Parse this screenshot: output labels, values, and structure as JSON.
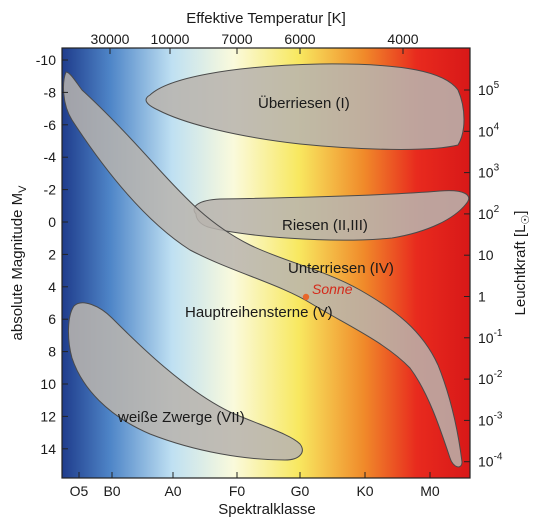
{
  "top_axis": {
    "title": "Effektive Temperatur [K]",
    "ticks": [
      "30000",
      "10000",
      "7000",
      "6000",
      "4000"
    ]
  },
  "bottom_axis": {
    "title": "Spektralklasse",
    "ticks": [
      "O5",
      "B0",
      "A0",
      "F0",
      "G0",
      "K0",
      "M0"
    ]
  },
  "left_axis": {
    "title_main": "absolute Magnitude M",
    "title_sub": "V",
    "ticks": [
      "-10",
      "-8",
      "-6",
      "-4",
      "-2",
      "0",
      "2",
      "4",
      "6",
      "8",
      "10",
      "12",
      "14"
    ]
  },
  "right_axis": {
    "title_main": "Leuchtkraft [L",
    "title_sub": "☉",
    "title_end": "]",
    "ticks": [
      {
        "base": "10",
        "exp": "5"
      },
      {
        "base": "10",
        "exp": "4"
      },
      {
        "base": "10",
        "exp": "3"
      },
      {
        "base": "10",
        "exp": "2"
      },
      {
        "base": "10",
        "exp": ""
      },
      {
        "base": "1",
        "exp": ""
      },
      {
        "base": "10",
        "exp": "-1"
      },
      {
        "base": "10",
        "exp": "-2"
      },
      {
        "base": "10",
        "exp": "-3"
      },
      {
        "base": "10",
        "exp": "-4"
      }
    ]
  },
  "regions": {
    "supergiants": "Überriesen (I)",
    "giants": "Riesen (II,III)",
    "subgiants": "Unterriesen (IV)",
    "main_sequence": "Hauptreihensterne (V)",
    "white_dwarfs": "weiße Zwerge (VII)"
  },
  "sun": {
    "label": "Sonne",
    "color": "#e8672a"
  },
  "colors": {
    "region_fill": "#b8b4ae",
    "region_stroke": "#4a4a4a",
    "gradient": [
      "#1f3c8c",
      "#4f86c8",
      "#bfe0f2",
      "#fafadc",
      "#f8e860",
      "#f08a2a",
      "#e82a1e",
      "#d81818"
    ]
  }
}
